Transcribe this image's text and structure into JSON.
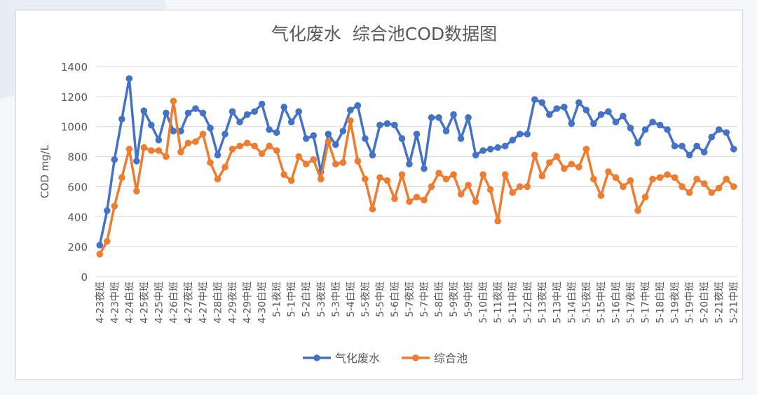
{
  "chart_data": {
    "type": "line",
    "title": "气化废水  综合池COD数据图",
    "xlabel": "",
    "ylabel": "COD mg/L",
    "ylim": [
      0,
      1400
    ],
    "yticks": [
      0,
      200,
      400,
      600,
      800,
      1000,
      1200,
      1400
    ],
    "grid": true,
    "legend_position": "bottom",
    "label_every": 2,
    "categories": [
      "4-23夜班",
      "4-23白班",
      "4-23中班",
      "4-24夜班",
      "4-24白班",
      "4-24中班",
      "4-25夜班",
      "4-25白班",
      "4-25中班",
      "4-26夜班",
      "4-26白班",
      "4-26中班",
      "4-27夜班",
      "4-27白班",
      "4-27中班",
      "4-28夜班",
      "4-28白班",
      "4-28中班",
      "4-29夜班",
      "4-29白班",
      "4-29中班",
      "4-30夜班",
      "4-30白班",
      "4-30中班",
      "5-1夜班",
      "5-1白班",
      "5-1中班",
      "5-2夜班",
      "5-2白班",
      "5-2中班",
      "5-3夜班",
      "5-3白班",
      "5-3中班",
      "5-4夜班",
      "5-4白班",
      "5-4中班",
      "5-5夜班",
      "5-5白班",
      "5-5中班",
      "5-6夜班",
      "5-6白班",
      "5-6中班",
      "5-7夜班",
      "5-7白班",
      "5-7中班",
      "5-8夜班",
      "5-8白班",
      "5-8中班",
      "5-9夜班",
      "5-9白班",
      "5-9中班",
      "5-10夜班",
      "5-10白班",
      "5-10中班",
      "5-11夜班",
      "5-11白班",
      "5-11中班",
      "5-12夜班",
      "5-12白班",
      "5-12中班",
      "5-13夜班",
      "5-13白班",
      "5-13中班",
      "5-14夜班",
      "5-14白班",
      "5-14中班",
      "5-15夜班",
      "5-15白班",
      "5-15中班",
      "5-16夜班",
      "5-16白班",
      "5-16中班",
      "5-17夜班",
      "5-17白班",
      "5-17中班",
      "5-18夜班",
      "5-18白班",
      "5-18中班",
      "5-19夜班",
      "5-19白班",
      "5-19中班",
      "5-20夜班",
      "5-20白班",
      "5-20中班",
      "5-21夜班",
      "5-21白班",
      "5-21中班"
    ],
    "series": [
      {
        "name": "气化废水",
        "color": "#4472c4",
        "values": [
          210,
          440,
          780,
          1050,
          1320,
          770,
          1105,
          1010,
          910,
          1090,
          970,
          970,
          1090,
          1120,
          1090,
          990,
          810,
          950,
          1100,
          1030,
          1080,
          1100,
          1150,
          980,
          960,
          1130,
          1030,
          1100,
          920,
          940,
          700,
          950,
          880,
          970,
          1110,
          1140,
          920,
          810,
          1010,
          1020,
          1010,
          920,
          750,
          950,
          720,
          1060,
          1060,
          970,
          1080,
          920,
          1060,
          810,
          840,
          850,
          860,
          870,
          910,
          950,
          950,
          1180,
          1160,
          1080,
          1120,
          1130,
          1020,
          1160,
          1110,
          1020,
          1080,
          1100,
          1030,
          1070,
          990,
          890,
          980,
          1030,
          1010,
          980,
          870,
          870,
          810,
          870,
          830,
          930,
          980,
          960,
          850
        ]
      },
      {
        "name": "综合池",
        "color": "#ed7d31",
        "values": [
          150,
          235,
          470,
          660,
          850,
          570,
          860,
          840,
          840,
          800,
          1170,
          830,
          890,
          900,
          950,
          760,
          650,
          730,
          850,
          870,
          890,
          870,
          820,
          870,
          840,
          680,
          640,
          800,
          750,
          780,
          650,
          900,
          750,
          760,
          1040,
          770,
          650,
          450,
          660,
          640,
          520,
          680,
          500,
          530,
          510,
          600,
          690,
          650,
          680,
          550,
          610,
          500,
          680,
          580,
          370,
          680,
          560,
          600,
          600,
          810,
          670,
          760,
          800,
          720,
          750,
          730,
          850,
          650,
          540,
          700,
          660,
          600,
          640,
          440,
          530,
          650,
          660,
          680,
          660,
          600,
          560,
          650,
          620,
          560,
          590,
          650,
          600
        ]
      }
    ]
  }
}
